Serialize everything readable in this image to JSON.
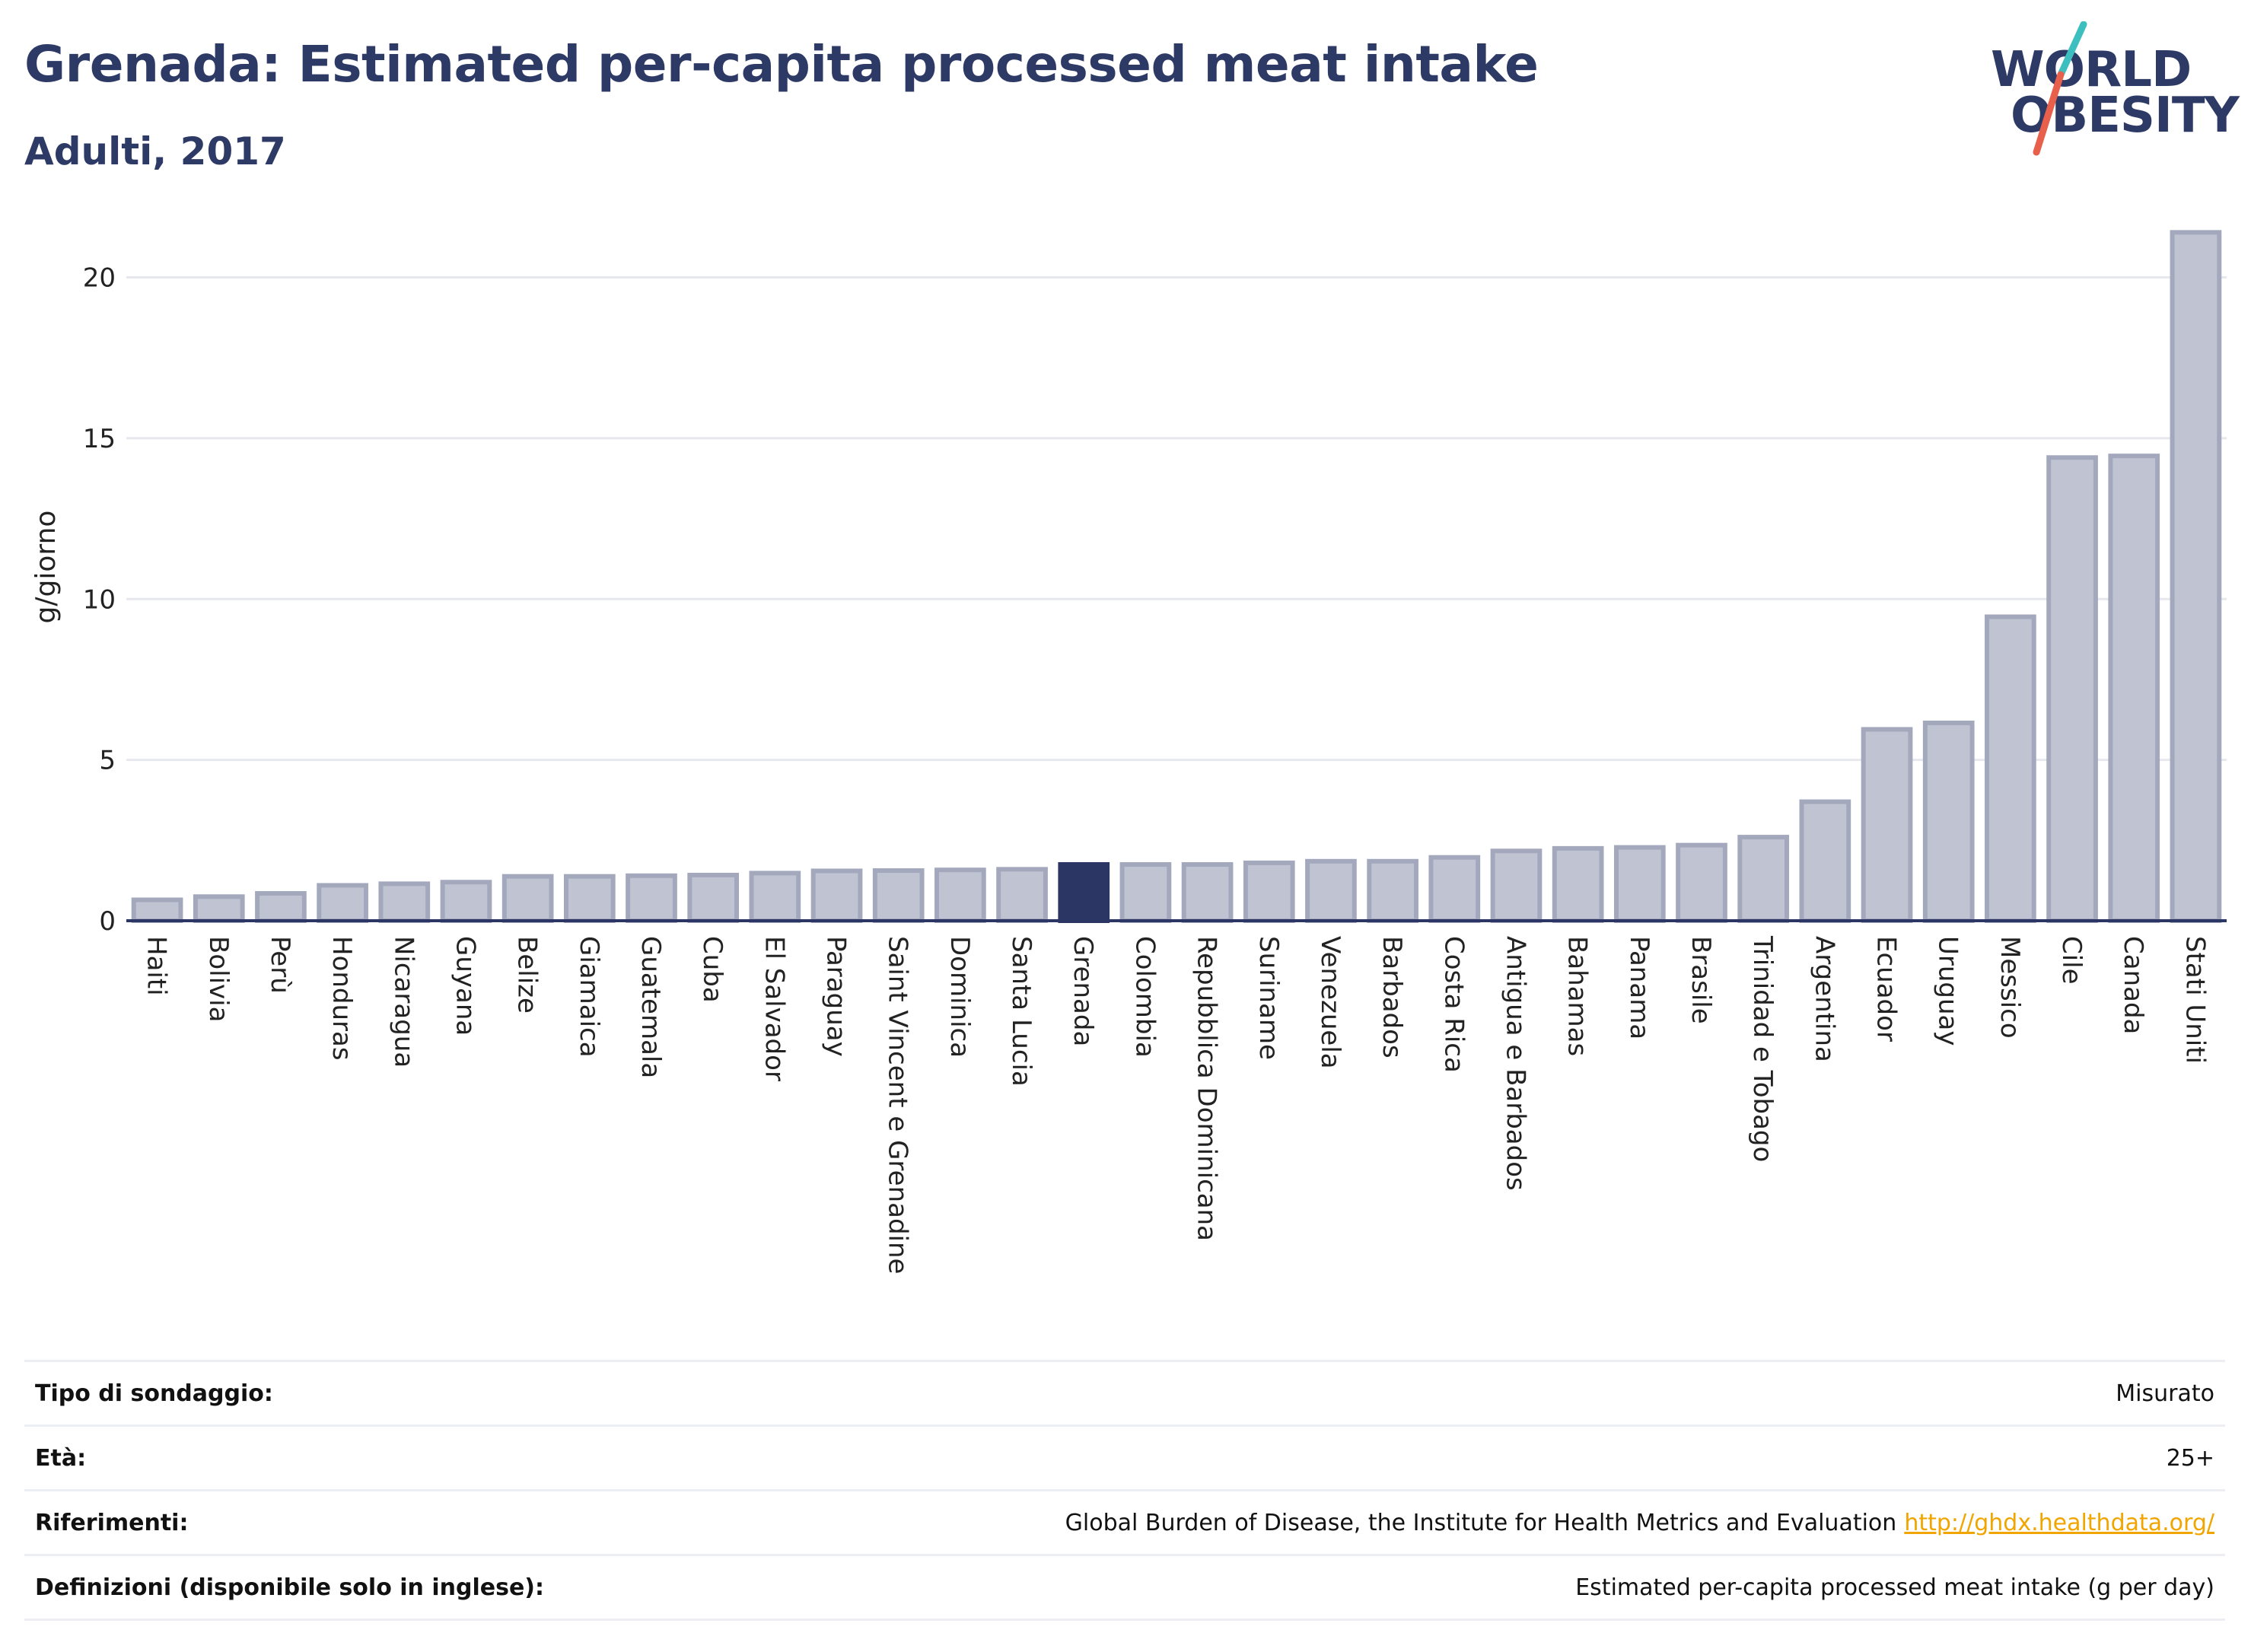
{
  "header": {
    "title": "Grenada: Estimated per-capita processed meat intake",
    "subtitle": "Adulti, 2017"
  },
  "logo": {
    "line1": "WORLD",
    "line2": "OBESITY",
    "colors": {
      "text": "#2d3a66",
      "slash_top": "#3dbfbf",
      "slash_bottom": "#e8604c"
    }
  },
  "colors": {
    "bar_fill": "#c0c4d2",
    "bar_stroke": "#a3a8bd",
    "highlight": "#2b3665",
    "grid": "#e6e8ee",
    "axis": "#2b3665"
  },
  "chart_data": {
    "type": "bar",
    "title": "Grenada: Estimated per-capita processed meat intake",
    "subtitle": "Adulti, 2017",
    "ylabel": "g/giorno",
    "xlabel": "",
    "ylim": [
      0,
      22
    ],
    "yticks": [
      0,
      5,
      10,
      15,
      20
    ],
    "grid": true,
    "highlight": "Grenada",
    "categories": [
      "Haiti",
      "Bolivia",
      "Perù",
      "Honduras",
      "Nicaragua",
      "Guyana",
      "Belize",
      "Giamaica",
      "Guatemala",
      "Cuba",
      "El Salvador",
      "Paraguay",
      "Saint Vincent e Grenadine",
      "Dominica",
      "Santa Lucia",
      "Grenada",
      "Colombia",
      "Repubblica Dominicana",
      "Suriname",
      "Venezuela",
      "Barbados",
      "Costa Rica",
      "Antigua e Barbados",
      "Bahamas",
      "Panama",
      "Brasile",
      "Trinidad e Tobago",
      "Argentina",
      "Ecuador",
      "Uruguay",
      "Messico",
      "Cile",
      "Canada",
      "Stati Uniti"
    ],
    "values": [
      0.65,
      0.75,
      0.85,
      1.1,
      1.15,
      1.2,
      1.38,
      1.38,
      1.4,
      1.42,
      1.48,
      1.55,
      1.56,
      1.58,
      1.6,
      1.75,
      1.75,
      1.75,
      1.8,
      1.85,
      1.85,
      1.97,
      2.17,
      2.25,
      2.28,
      2.35,
      2.6,
      3.7,
      5.95,
      6.15,
      9.45,
      14.4,
      14.45,
      21.4
    ]
  },
  "info": {
    "rows": [
      {
        "label": "Tipo di sondaggio:",
        "value": "Misurato",
        "link": ""
      },
      {
        "label": "Età:",
        "value": "25+",
        "link": ""
      },
      {
        "label": "Riferimenti:",
        "value": "Global Burden of Disease, the Institute for Health Metrics and Evaluation",
        "link": "http://ghdx.healthdata.org/"
      },
      {
        "label": "Definizioni (disponibile solo in inglese):",
        "value": "Estimated per-capita processed meat intake (g per day)",
        "link": ""
      }
    ]
  }
}
